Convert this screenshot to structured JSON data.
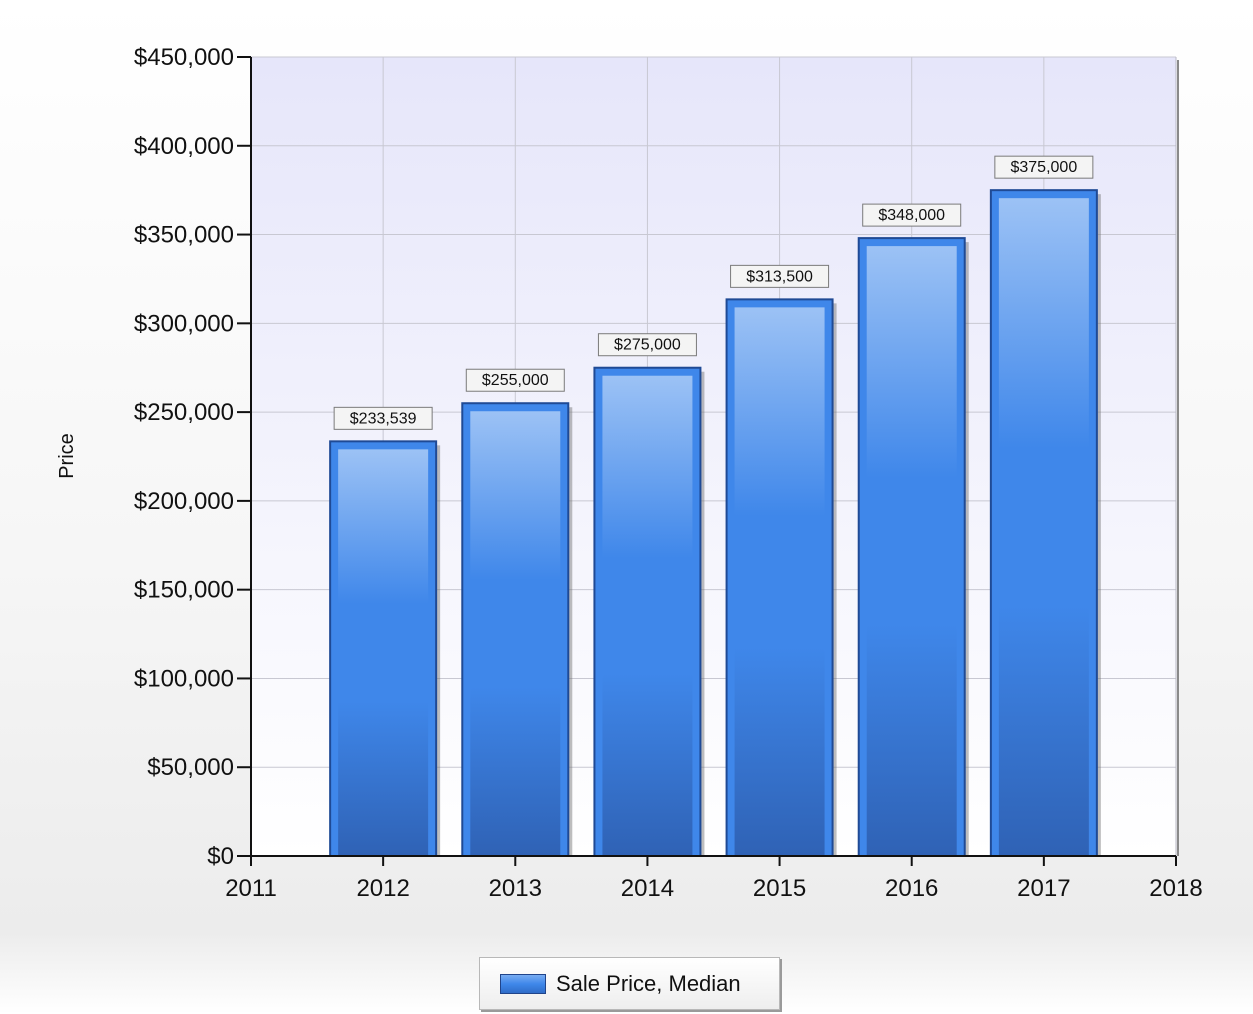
{
  "chart_data": {
    "type": "bar",
    "categories": [
      "2012",
      "2013",
      "2014",
      "2015",
      "2016",
      "2017"
    ],
    "x": [
      2012,
      2013,
      2014,
      2015,
      2016,
      2017
    ],
    "values": [
      233539,
      255000,
      275000,
      313500,
      348000,
      375000
    ],
    "data_labels": [
      "$233,539",
      "$255,000",
      "$275,000",
      "$313,500",
      "$348,000",
      "$375,000"
    ],
    "series": [
      {
        "name": "Sale Price, Median",
        "values": [
          233539,
          255000,
          275000,
          313500,
          348000,
          375000
        ]
      }
    ],
    "title": "",
    "xlabel": "",
    "ylabel": "Price",
    "xlim": [
      2011,
      2018
    ],
    "ylim": [
      0,
      450000
    ],
    "x_ticks": [
      "2011",
      "2012",
      "2013",
      "2014",
      "2015",
      "2016",
      "2017",
      "2018"
    ],
    "y_ticks": [
      "$0",
      "$50,000",
      "$100,000",
      "$150,000",
      "$200,000",
      "$250,000",
      "$300,000",
      "$350,000",
      "$400,000",
      "$450,000"
    ],
    "grid": true,
    "legend_position": "bottom",
    "colors": {
      "bar_light": "#9cc2f5",
      "bar_mid": "#3f87ea",
      "bar_dark": "#2f62b5",
      "bar_border": "#1f4a95",
      "plot_top": "#e6e6fa",
      "plot_bottom": "#ffffff",
      "grid": "#c8c8d2"
    }
  },
  "legend": {
    "label": "Sale Price, Median"
  }
}
